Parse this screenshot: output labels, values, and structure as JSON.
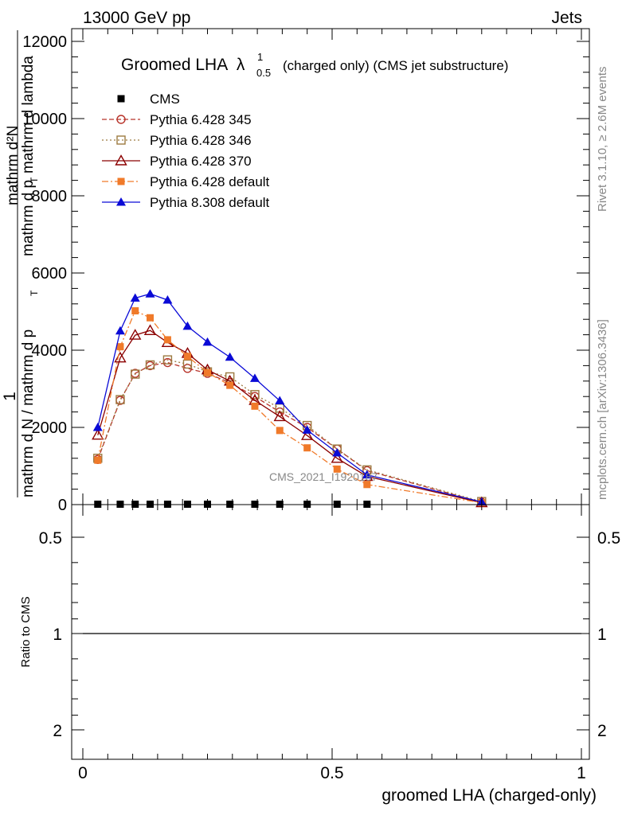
{
  "header": {
    "left": "13000 GeV pp",
    "right": "Jets"
  },
  "side": {
    "rivet": "Rivet 3.1.10, ≥ 2.6M events",
    "mcplots": "mcplots.cern.ch [arXiv:1306.3436]"
  },
  "watermark": "CMS_2021_I1920187",
  "chart_data": [
    {
      "type": "line",
      "title_main": "Groomed LHA",
      "title_symbol": "λ",
      "title_sup": "1",
      "title_sub": "0.5",
      "title_rest": "(charged only) (CMS jet substructure)",
      "ylabel": {
        "one": "1",
        "main_num": "mathrm d",
        "main_sub": "2",
        "frac_num": "mathrm d²N",
        "frac_den": "mathrm d p",
        "frac_den_sub": "T",
        "frac_den_rest": "mathrm d lambda",
        "outer_den": "mathrm d N / mathrm d p",
        "outer_den_sub": "T"
      },
      "xlim": [
        0,
        1
      ],
      "ylim": [
        0,
        12000
      ],
      "yticks": [
        0,
        2000,
        4000,
        6000,
        8000,
        10000,
        12000
      ],
      "ytick_labels": [
        "0",
        "2000",
        "4000",
        "6000",
        "8000",
        "10000",
        "12000"
      ],
      "x": [
        0.03,
        0.075,
        0.105,
        0.135,
        0.17,
        0.21,
        0.25,
        0.295,
        0.345,
        0.395,
        0.45,
        0.51,
        0.57,
        0.8
      ],
      "series": [
        {
          "name": "CMS",
          "color": "#000000",
          "marker": "square-filled",
          "dash": "none",
          "values": [
            10,
            10,
            10,
            10,
            10,
            10,
            10,
            10,
            10,
            10,
            10,
            10,
            10,
            null
          ]
        },
        {
          "name": "Pythia 6.428 345",
          "color": "#b8342b",
          "marker": "circle-open",
          "dash": "6,3",
          "values": [
            1170,
            2700,
            3400,
            3600,
            3680,
            3530,
            3400,
            3160,
            2800,
            2400,
            2000,
            1440,
            880,
            60
          ]
        },
        {
          "name": "Pythia 6.428 346",
          "color": "#9c7a40",
          "marker": "square-open",
          "dash": "2,3",
          "values": [
            1200,
            2720,
            3380,
            3620,
            3750,
            3640,
            3440,
            3310,
            2850,
            2500,
            2050,
            1440,
            900,
            80
          ]
        },
        {
          "name": "Pythia 6.428 370",
          "color": "#8b0000",
          "marker": "triangle-open",
          "dash": "none",
          "values": [
            1800,
            3800,
            4390,
            4510,
            4200,
            3920,
            3490,
            3200,
            2700,
            2280,
            1790,
            1200,
            730,
            50
          ]
        },
        {
          "name": "Pythia 6.428 default",
          "color": "#f07a2a",
          "marker": "square-filled",
          "dash": "8,3,2,3",
          "values": [
            1150,
            4090,
            5020,
            4840,
            4270,
            3840,
            3420,
            3090,
            2550,
            1920,
            1470,
            920,
            520,
            50
          ]
        },
        {
          "name": "Pythia 8.308 default",
          "color": "#0a0ad6",
          "marker": "triangle-filled",
          "dash": "none",
          "values": [
            2000,
            4500,
            5350,
            5460,
            5300,
            4620,
            4210,
            3820,
            3270,
            2690,
            1930,
            1340,
            770,
            70
          ]
        }
      ],
      "legend_placement": "top-left"
    },
    {
      "type": "ratio",
      "ylabel": "Ratio to CMS",
      "xlabel": "groomed LHA (charged-only)",
      "xlim": [
        0,
        1
      ],
      "yticks": [
        0.5,
        1,
        2
      ],
      "ytick_labels": [
        "0.5",
        "1",
        "2"
      ],
      "xticks": [
        0,
        0.5,
        1
      ],
      "xtick_labels": [
        "0",
        "0.5",
        "1"
      ],
      "bins": [
        {
          "lo": 0.0,
          "hi": 0.06,
          "stat": 0.03,
          "tot": 0.055
        },
        {
          "lo": 0.06,
          "hi": 0.09,
          "stat": 0.025,
          "tot": 0.045
        },
        {
          "lo": 0.09,
          "hi": 0.12,
          "stat": 0.02,
          "tot": 0.04
        },
        {
          "lo": 0.12,
          "hi": 0.15,
          "stat": 0.035,
          "tot": 0.07
        },
        {
          "lo": 0.15,
          "hi": 0.19,
          "stat": 0.025,
          "tot": 0.05
        },
        {
          "lo": 0.19,
          "hi": 0.23,
          "stat": 0.025,
          "tot": 0.05
        },
        {
          "lo": 0.23,
          "hi": 0.27,
          "stat": 0.025,
          "tot": 0.055
        },
        {
          "lo": 0.27,
          "hi": 0.32,
          "stat": 0.02,
          "tot": 0.045
        },
        {
          "lo": 0.32,
          "hi": 0.37,
          "stat": 0.025,
          "tot": 0.05
        },
        {
          "lo": 0.37,
          "hi": 0.42,
          "stat": 0.025,
          "tot": 0.05
        },
        {
          "lo": 0.42,
          "hi": 0.48,
          "stat": 0.025,
          "tot": 0.05
        },
        {
          "lo": 0.48,
          "hi": 0.54,
          "stat": 0.03,
          "tot": 0.06
        },
        {
          "lo": 0.54,
          "hi": 0.6,
          "stat": 0.04,
          "tot": 0.085
        },
        {
          "lo": 0.6,
          "hi": 1.0,
          "stat": 0.055,
          "tot": 0.12
        }
      ]
    }
  ]
}
